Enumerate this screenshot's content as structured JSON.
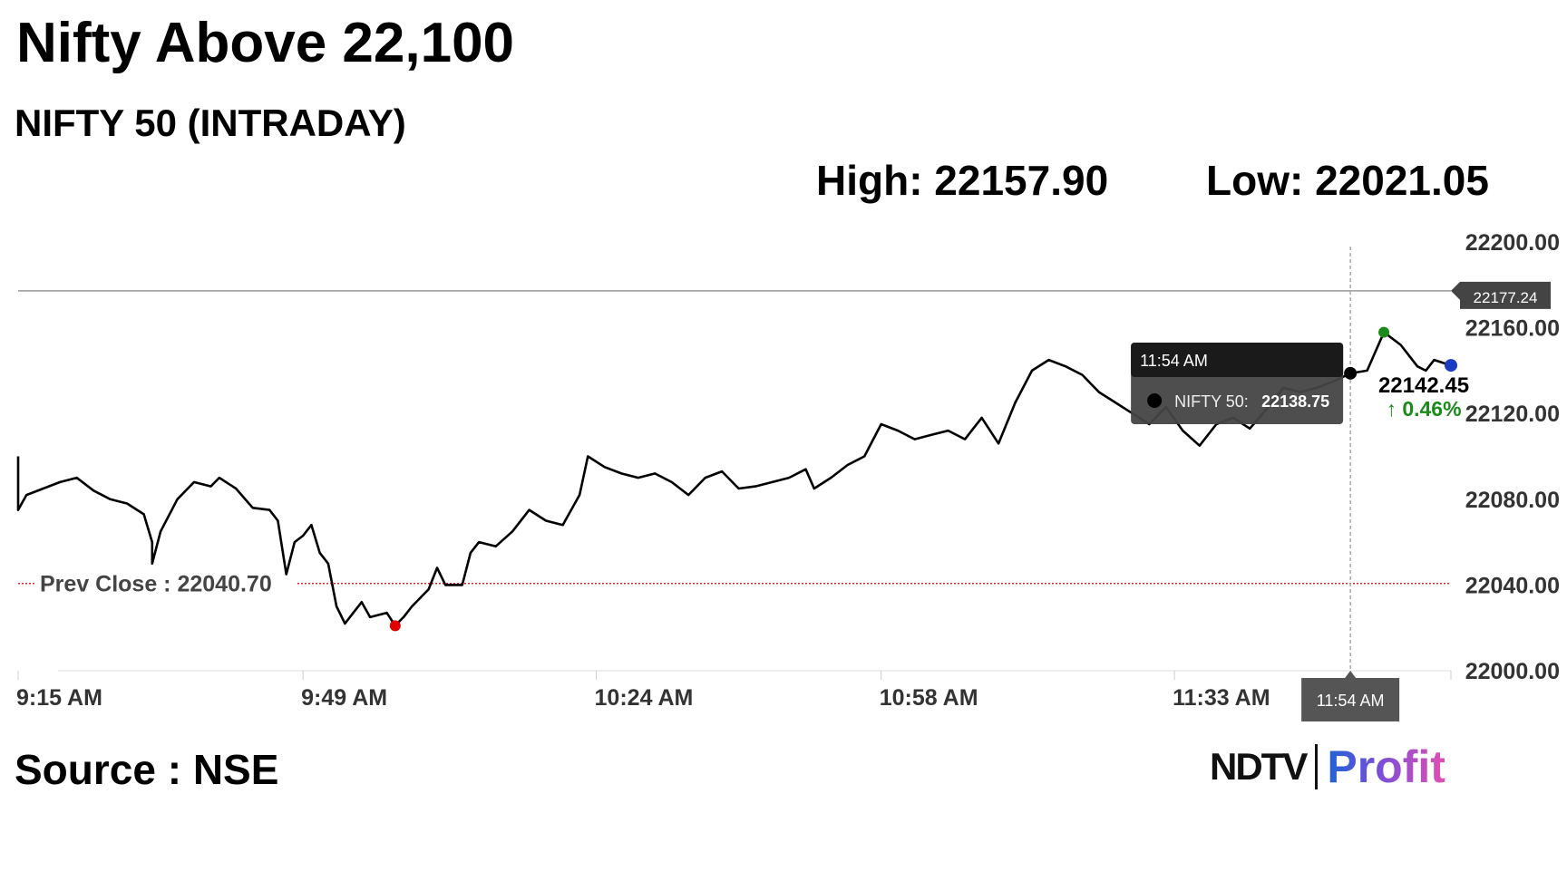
{
  "headline": "Nifty Above 22,100",
  "subtitle": "NIFTY 50 (INTRADAY)",
  "stats": {
    "high": "High: 22157.90",
    "low": "Low: 22021.05"
  },
  "source": "Source : NSE",
  "logo": {
    "ndtv": "NDTV",
    "profit": "Profit"
  },
  "colors": {
    "line": "#000000",
    "prev_close": "#d62728",
    "low_dot": "#e00000",
    "high_dot": "#1a8a1a",
    "up": "#1a8a1a",
    "tooltip_bg": "#1a1a1a"
  },
  "chart_data": {
    "type": "line",
    "title": "NIFTY 50 (INTRADAY)",
    "xlabel": "",
    "ylabel": "",
    "ylim": [
      22000,
      22200
    ],
    "yticks": [
      "22200.00",
      "22160.00",
      "22120.00",
      "22080.00",
      "22040.00",
      "22000.00"
    ],
    "xticks": [
      "9:15 AM",
      "9:49 AM",
      "10:24 AM",
      "10:58 AM",
      "11:33 AM"
    ],
    "x_range_minutes": [
      "9:15 AM",
      "12:06 PM"
    ],
    "series": [
      {
        "name": "NIFTY 50",
        "points": [
          [
            "9:15",
            22100
          ],
          [
            "9:15",
            22075
          ],
          [
            "9:16",
            22082
          ],
          [
            "9:18",
            22085
          ],
          [
            "9:20",
            22088
          ],
          [
            "9:22",
            22090
          ],
          [
            "9:24",
            22084
          ],
          [
            "9:26",
            22080
          ],
          [
            "9:28",
            22078
          ],
          [
            "9:30",
            22073
          ],
          [
            "9:31",
            22060
          ],
          [
            "9:31",
            22050
          ],
          [
            "9:32",
            22065
          ],
          [
            "9:34",
            22080
          ],
          [
            "9:36",
            22088
          ],
          [
            "9:38",
            22086
          ],
          [
            "9:39",
            22090
          ],
          [
            "9:41",
            22085
          ],
          [
            "9:43",
            22076
          ],
          [
            "9:45",
            22075
          ],
          [
            "9:46",
            22070
          ],
          [
            "9:47",
            22045
          ],
          [
            "9:48",
            22060
          ],
          [
            "9:49",
            22063
          ],
          [
            "9:50",
            22068
          ],
          [
            "9:51",
            22055
          ],
          [
            "9:52",
            22050
          ],
          [
            "9:53",
            22030
          ],
          [
            "9:54",
            22022
          ],
          [
            "9:55",
            22027
          ],
          [
            "9:56",
            22032
          ],
          [
            "9:57",
            22025
          ],
          [
            "9:59",
            22027
          ],
          [
            "10:00",
            22021
          ],
          [
            "10:01",
            22025
          ],
          [
            "10:02",
            22030
          ],
          [
            "10:04",
            22038
          ],
          [
            "10:05",
            22048
          ],
          [
            "10:06",
            22040
          ],
          [
            "10:08",
            22040
          ],
          [
            "10:09",
            22055
          ],
          [
            "10:10",
            22060
          ],
          [
            "10:12",
            22058
          ],
          [
            "10:14",
            22065
          ],
          [
            "10:16",
            22075
          ],
          [
            "10:18",
            22070
          ],
          [
            "10:20",
            22068
          ],
          [
            "10:22",
            22082
          ],
          [
            "10:23",
            22100
          ],
          [
            "10:25",
            22095
          ],
          [
            "10:27",
            22092
          ],
          [
            "10:29",
            22090
          ],
          [
            "10:31",
            22092
          ],
          [
            "10:33",
            22088
          ],
          [
            "10:35",
            22082
          ],
          [
            "10:37",
            22090
          ],
          [
            "10:39",
            22093
          ],
          [
            "10:41",
            22085
          ],
          [
            "10:43",
            22086
          ],
          [
            "10:45",
            22088
          ],
          [
            "10:47",
            22090
          ],
          [
            "10:49",
            22094
          ],
          [
            "10:50",
            22085
          ],
          [
            "10:52",
            22090
          ],
          [
            "10:54",
            22096
          ],
          [
            "10:56",
            22100
          ],
          [
            "10:58",
            22115
          ],
          [
            "11:00",
            22112
          ],
          [
            "11:02",
            22108
          ],
          [
            "11:04",
            22110
          ],
          [
            "11:06",
            22112
          ],
          [
            "11:08",
            22108
          ],
          [
            "11:10",
            22118
          ],
          [
            "11:12",
            22106
          ],
          [
            "11:14",
            22125
          ],
          [
            "11:16",
            22140
          ],
          [
            "11:18",
            22145
          ],
          [
            "11:20",
            22142
          ],
          [
            "11:22",
            22138
          ],
          [
            "11:24",
            22130
          ],
          [
            "11:26",
            22125
          ],
          [
            "11:28",
            22120
          ],
          [
            "11:30",
            22115
          ],
          [
            "11:32",
            22123
          ],
          [
            "11:34",
            22112
          ],
          [
            "11:36",
            22105
          ],
          [
            "11:38",
            22115
          ],
          [
            "11:40",
            22118
          ],
          [
            "11:42",
            22113
          ],
          [
            "11:44",
            22122
          ],
          [
            "11:46",
            22132
          ],
          [
            "11:48",
            22130
          ],
          [
            "11:50",
            22132
          ],
          [
            "11:52",
            22135
          ],
          [
            "11:54",
            22138.75
          ],
          [
            "11:56",
            22140
          ],
          [
            "11:58",
            22157.9
          ],
          [
            "12:00",
            22152
          ],
          [
            "12:02",
            22142
          ],
          [
            "12:03",
            22140
          ],
          [
            "12:04",
            22145
          ],
          [
            "12:06",
            22142.45
          ]
        ]
      }
    ],
    "prev_close": {
      "label": "Prev Close : 22040.70",
      "value": 22040.7
    },
    "reference_line": {
      "label": "22177.24",
      "value": 22177.24
    },
    "high": 22157.9,
    "low": 22021.05,
    "tooltip": {
      "time": "11:54 AM",
      "series": "NIFTY 50:",
      "value": "22138.75"
    },
    "crosshair_label": "11:54 AM",
    "last": {
      "value": "22142.45",
      "change": "0.46%",
      "arrow": "↑"
    }
  }
}
